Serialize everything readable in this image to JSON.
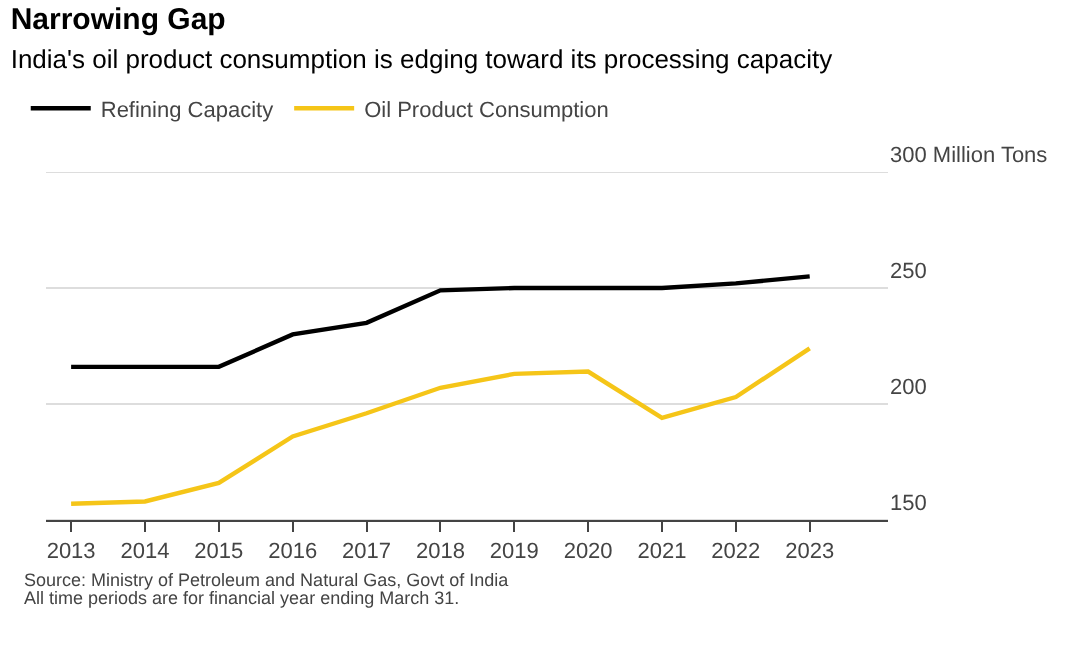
{
  "chart_data": {
    "type": "line",
    "title": "Narrowing Gap",
    "subtitle": "India's oil product consumption is edging toward its processing capacity",
    "x": [
      2013,
      2014,
      2015,
      2016,
      2017,
      2018,
      2019,
      2020,
      2021,
      2022,
      2023
    ],
    "series": [
      {
        "name": "Refining Capacity",
        "color": "#000000",
        "values": [
          216,
          216,
          216,
          230,
          235,
          249,
          250,
          250,
          250,
          252,
          255
        ]
      },
      {
        "name": "Oil Product Consumption",
        "color": "#f5c518",
        "values": [
          157,
          158,
          166,
          186,
          196,
          207,
          213,
          214,
          194,
          203,
          224
        ]
      }
    ],
    "xlim": [
      2012.66,
      2024.06
    ],
    "xticks": [
      2013,
      2014,
      2015,
      2016,
      2017,
      2018,
      2019,
      2020,
      2021,
      2022,
      2023
    ],
    "ylim": [
      150,
      300
    ],
    "yticks": [
      150,
      200,
      250,
      {
        "value": 300,
        "label": "300 Million Tons"
      }
    ],
    "grid": "y",
    "legend": "top left",
    "marker": "none",
    "line_style": "solid",
    "annotations": [
      "Source: Ministry of Petroleum and Natural Gas, Govt of India",
      "All time periods are for financial year ending March 31."
    ]
  }
}
